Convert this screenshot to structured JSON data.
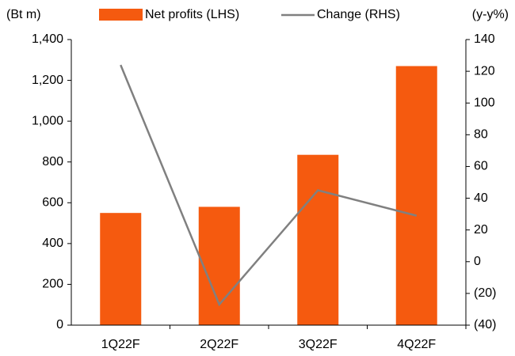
{
  "chart_data": {
    "type": "bar",
    "ylabel": "(Bt m)",
    "y2label": "(y-y%)",
    "categories": [
      "1Q22F",
      "2Q22F",
      "3Q22F",
      "4Q22F"
    ],
    "series": [
      {
        "name": "Net profits (LHS)",
        "type": "bar",
        "color": "#f55a0f",
        "values": [
          550,
          580,
          835,
          1270
        ]
      },
      {
        "name": "Change (RHS)",
        "type": "line",
        "axis": "y2",
        "color": "#808080",
        "values": [
          124,
          -27,
          45,
          29
        ]
      }
    ],
    "ylim": [
      0,
      1400
    ],
    "yticks": [
      0,
      200,
      400,
      600,
      800,
      {
        "value": 1000,
        "label": "1,000"
      },
      {
        "value": 1200,
        "label": "1,200"
      },
      {
        "value": 1400,
        "label": "1,400"
      }
    ],
    "y2lim": [
      -40,
      140
    ],
    "y2ticks": [
      {
        "value": -40,
        "label": "(40)"
      },
      {
        "value": -20,
        "label": "(20)"
      },
      0,
      20,
      40,
      60,
      80,
      100,
      120,
      140
    ],
    "legend": "top"
  }
}
